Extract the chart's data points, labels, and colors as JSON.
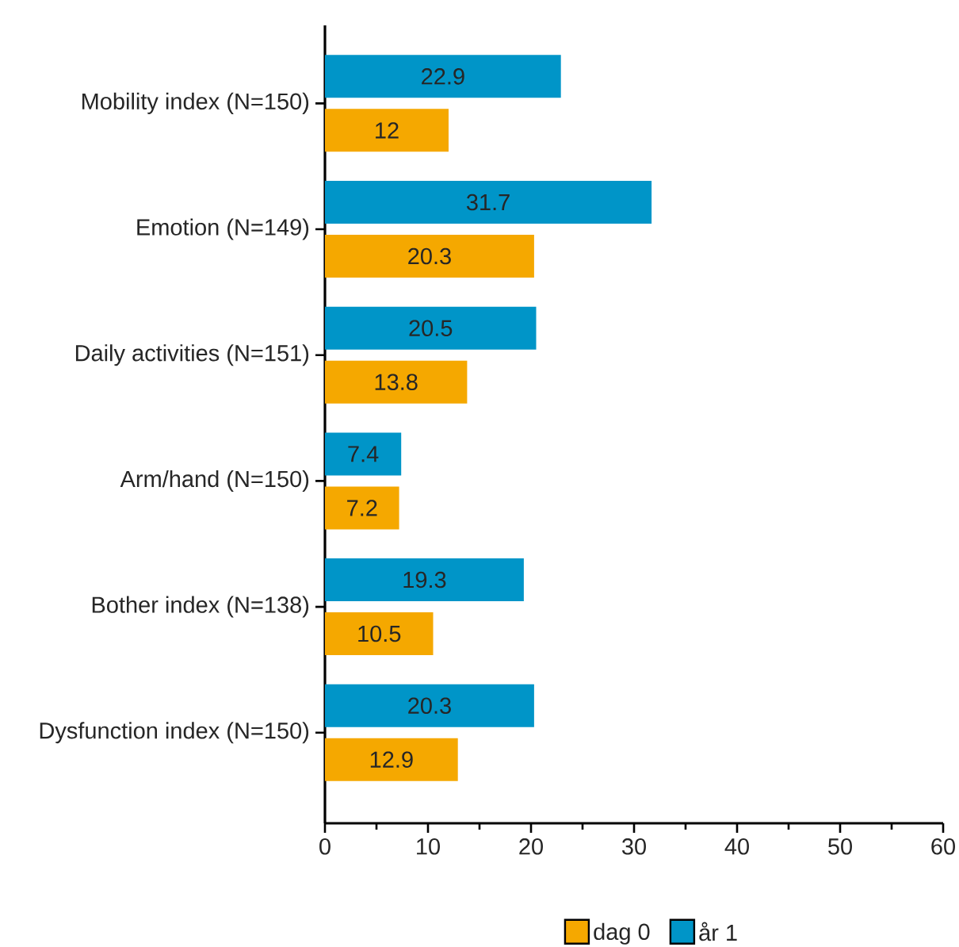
{
  "chart_data": {
    "type": "bar",
    "orientation": "horizontal",
    "categories": [
      "Mobility index (N=150)",
      "Emotion (N=149)",
      "Daily activities (N=151)",
      "Arm/hand (N=150)",
      "Bother index (N=138)",
      "Dysfunction index (N=150)"
    ],
    "series": [
      {
        "name": "dag 0",
        "color": "#f5a800",
        "values": [
          12,
          20.3,
          13.8,
          7.2,
          10.5,
          12.9
        ]
      },
      {
        "name": "år 1",
        "color": "#0095c8",
        "values": [
          22.9,
          31.7,
          20.5,
          7.4,
          19.3,
          20.3
        ]
      }
    ],
    "xlim": [
      0,
      60
    ],
    "xticks": [
      0,
      {
        "value": 5,
        "label": null
      },
      10,
      {
        "value": 15,
        "label": null
      },
      20,
      {
        "value": 25,
        "label": null
      },
      30,
      {
        "value": 35,
        "label": null
      },
      40,
      {
        "value": 45,
        "label": null
      },
      50,
      {
        "value": 55,
        "label": null
      },
      60
    ],
    "data_labels": true,
    "legend": "bottom"
  }
}
